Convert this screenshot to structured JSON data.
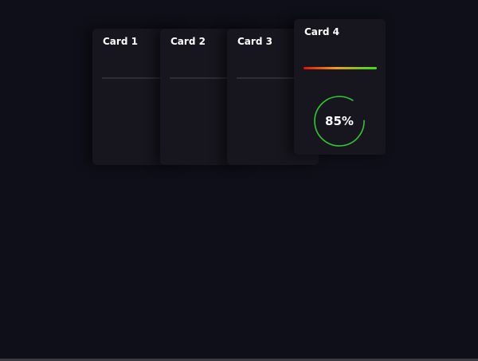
{
  "cards": [
    {
      "title": "Card 1"
    },
    {
      "title": "Card 2"
    },
    {
      "title": "Card 3"
    },
    {
      "title": "Card 4",
      "progress_percent": 85,
      "progress_label": "85%",
      "ring_color": "#2ecc2e",
      "gradient_colors": [
        "#e01010",
        "#f0a010",
        "#30e020"
      ]
    }
  ]
}
